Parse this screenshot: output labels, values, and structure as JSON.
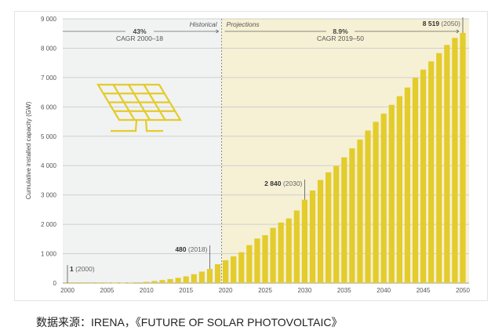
{
  "chart_data": {
    "type": "bar",
    "title": "",
    "xlabel": "",
    "ylabel": "Cumulative installed capacity (GW)",
    "ylim": [
      0,
      9000
    ],
    "yticks": [
      "0",
      "1 000",
      "2 000",
      "3 000",
      "4 000",
      "5 000",
      "6 000",
      "7 000",
      "8 000",
      "9 000"
    ],
    "xticks": [
      "2000",
      "2005",
      "2010",
      "2015",
      "2020",
      "2025",
      "2030",
      "2035",
      "2040",
      "2045",
      "2050"
    ],
    "categories": [
      2000,
      2001,
      2002,
      2003,
      2004,
      2005,
      2006,
      2007,
      2008,
      2009,
      2010,
      2011,
      2012,
      2013,
      2014,
      2015,
      2016,
      2017,
      2018,
      2019,
      2020,
      2021,
      2022,
      2023,
      2024,
      2025,
      2026,
      2027,
      2028,
      2029,
      2030,
      2031,
      2032,
      2033,
      2034,
      2035,
      2036,
      2037,
      2038,
      2039,
      2040,
      2041,
      2042,
      2043,
      2044,
      2045,
      2046,
      2047,
      2048,
      2049,
      2050
    ],
    "values": [
      1,
      1,
      2,
      3,
      4,
      5,
      7,
      9,
      16,
      23,
      40,
      71,
      100,
      136,
      177,
      228,
      300,
      390,
      480,
      640,
      775,
      910,
      1050,
      1290,
      1515,
      1630,
      1880,
      2060,
      2200,
      2470,
      2840,
      3150,
      3510,
      3770,
      3985,
      4280,
      4590,
      4885,
      5195,
      5490,
      5770,
      6070,
      6365,
      6660,
      6990,
      7270,
      7550,
      7830,
      8110,
      8350,
      8519
    ],
    "regions": [
      {
        "label": "Historical",
        "from": 2000,
        "to": 2019,
        "cagr": "43%",
        "cagr_label": "CAGR 2000–18"
      },
      {
        "label": "Projections",
        "from": 2020,
        "to": 2050,
        "cagr": "8.9%",
        "cagr_label": "CAGR 2019–50"
      }
    ],
    "annotations": [
      {
        "year": 2000,
        "value": "1",
        "paren": "(2000)"
      },
      {
        "year": 2018,
        "value": "480",
        "paren": "(2018)"
      },
      {
        "year": 2030,
        "value": "2 840",
        "paren": "(2030)"
      },
      {
        "year": 2050,
        "value": "8 519",
        "paren": "(2050)"
      }
    ],
    "colors": {
      "bar": "#e3cc2b",
      "historical_bg": "#f1f2f2",
      "projection_bg": "#f6f0d4",
      "grid": "#d0d0d0",
      "icon": "#e3cc2b"
    }
  },
  "caption": "数据来源：IRENA，《FUTURE OF SOLAR PHOTOVOLTAIC》"
}
